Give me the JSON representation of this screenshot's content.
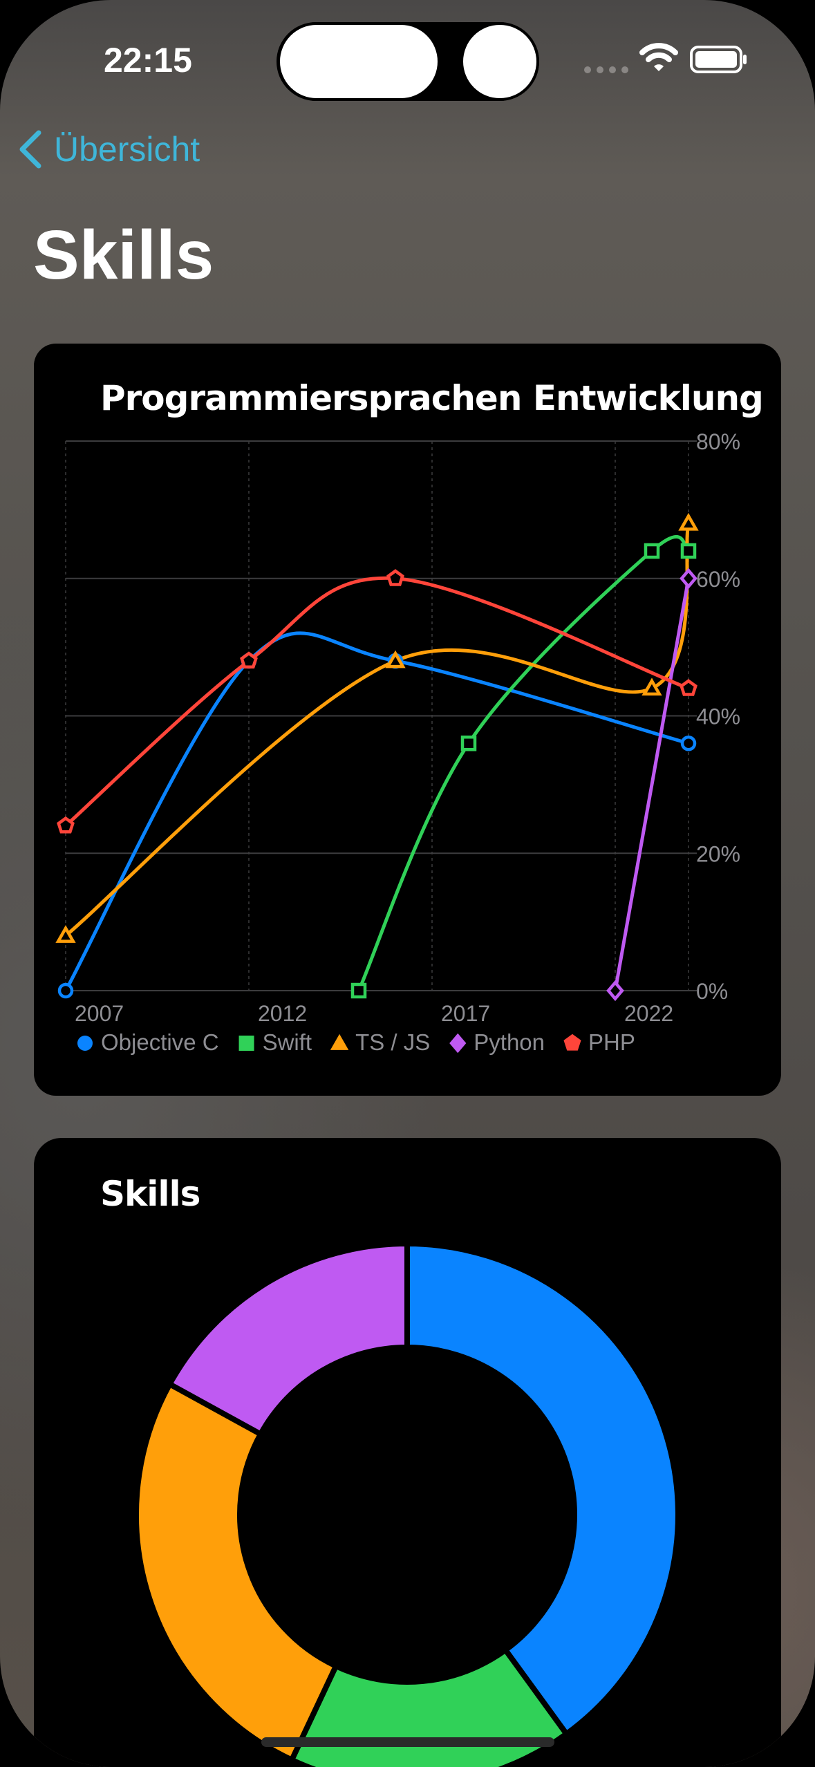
{
  "status_bar": {
    "time": "22:15"
  },
  "nav": {
    "back_label": "Übersicht",
    "title": "Skills"
  },
  "colors": {
    "objective_c": "#0a84ff",
    "swift": "#30d158",
    "ts_js": "#ff9f0a",
    "python": "#bf5af2",
    "php": "#ff453a",
    "accent": "#3fb6d9"
  },
  "chart_data": [
    {
      "type": "line",
      "title": "Programmiersprachen Entwicklung",
      "x_ticks": [
        "2007",
        "2012",
        "2017",
        "2022"
      ],
      "y_ticks": [
        "0%",
        "20%",
        "40%",
        "60%",
        "80%"
      ],
      "xlim": [
        2007,
        2024
      ],
      "ylim": [
        0,
        80
      ],
      "grid": true,
      "y_axis_side": "right",
      "legend": "bottom",
      "series": [
        {
          "name": "Objective C",
          "marker": "circle",
          "color": "#0a84ff",
          "points": [
            [
              2007,
              0
            ],
            [
              2012,
              48
            ],
            [
              2016,
              48
            ],
            [
              2024,
              36
            ]
          ]
        },
        {
          "name": "Swift",
          "marker": "square",
          "color": "#30d158",
          "points": [
            [
              2015,
              0
            ],
            [
              2018,
              36
            ],
            [
              2023,
              64
            ],
            [
              2024,
              64
            ]
          ]
        },
        {
          "name": "TS / JS",
          "marker": "triangle",
          "color": "#ff9f0a",
          "points": [
            [
              2007,
              8
            ],
            [
              2016,
              48
            ],
            [
              2023,
              44
            ],
            [
              2024,
              68
            ]
          ]
        },
        {
          "name": "Python",
          "marker": "diamond",
          "color": "#bf5af2",
          "points": [
            [
              2022,
              0
            ],
            [
              2024,
              60
            ]
          ]
        },
        {
          "name": "PHP",
          "marker": "pentagon",
          "color": "#ff453a",
          "points": [
            [
              2007,
              24
            ],
            [
              2012,
              48
            ],
            [
              2016,
              60
            ],
            [
              2024,
              44
            ]
          ]
        }
      ]
    },
    {
      "type": "pie",
      "title": "Skills",
      "donut": true,
      "slices": [
        {
          "color": "#0a84ff",
          "value": 40
        },
        {
          "color": "#30d158",
          "value": 17
        },
        {
          "color": "#ff9f0a",
          "value": 26
        },
        {
          "color": "#bf5af2",
          "value": 17
        }
      ]
    }
  ]
}
